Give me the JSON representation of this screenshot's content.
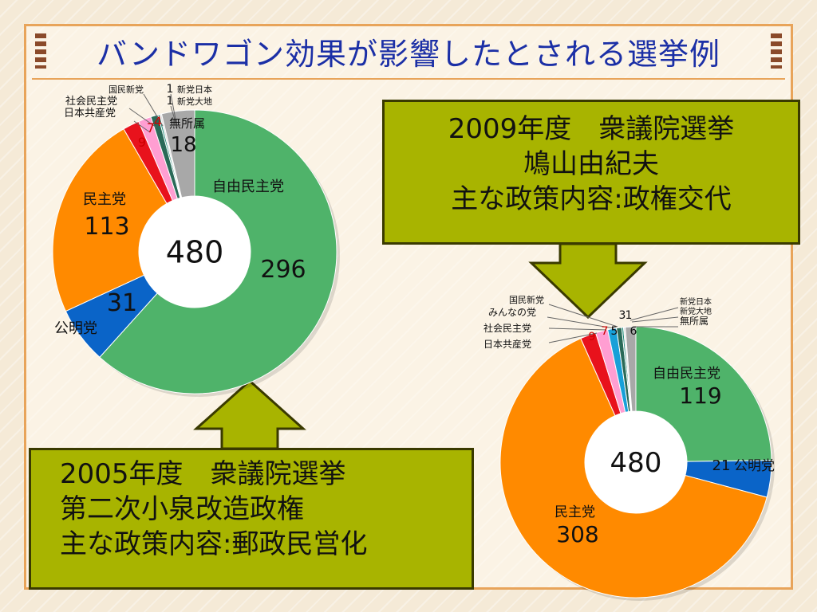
{
  "title": "バンドワゴン効果が影響したとされる選挙例",
  "colors": {
    "ldp": "#4fb36a",
    "komeito": "#0a64c8",
    "dpj": "#ff8a00",
    "jcp": "#e8121c",
    "sdp": "#ff9ed2",
    "your_party": "#18a0d8",
    "pnp": "#2a6a58",
    "nph": "#1f8a78",
    "daichi": "#e0e0e0",
    "indep": "#a8a8a8",
    "callout_bg": "#a8b400",
    "title": "#1b2fa6"
  },
  "callout_2009": {
    "line1": "2009年度　衆議院選挙",
    "line2": "鳩山由紀夫",
    "line3": "主な政策内容:政権交代"
  },
  "callout_2005": {
    "line1": "2005年度　衆議院選挙",
    "line2": "第二次小泉改造政権",
    "line3": "主な政策内容:郵政民営化"
  },
  "chart_data": [
    {
      "type": "pie",
      "name": "2005",
      "total_label": "480",
      "slices": [
        {
          "label": "自由民主党",
          "value": 296,
          "color_key": "ldp"
        },
        {
          "label": "公明党",
          "value": 31,
          "color_key": "komeito"
        },
        {
          "label": "民主党",
          "value": 113,
          "color_key": "dpj"
        },
        {
          "label": "日本共産党",
          "value": 9,
          "color_key": "jcp"
        },
        {
          "label": "社会民主党",
          "value": 7,
          "color_key": "sdp"
        },
        {
          "label": "国民新党",
          "value": 4,
          "color_key": "pnp"
        },
        {
          "label": "新党日本",
          "value": 1,
          "color_key": "nph"
        },
        {
          "label": "新党大地",
          "value": 1,
          "color_key": "daichi"
        },
        {
          "label": "無所属",
          "value": 18,
          "color_key": "indep"
        }
      ]
    },
    {
      "type": "pie",
      "name": "2009",
      "total_label": "480",
      "slices": [
        {
          "label": "自由民主党",
          "value": 119,
          "color_key": "ldp"
        },
        {
          "label": "公明党",
          "value": 21,
          "color_key": "komeito"
        },
        {
          "label": "民主党",
          "value": 308,
          "color_key": "dpj"
        },
        {
          "label": "日本共産党",
          "value": 9,
          "color_key": "jcp"
        },
        {
          "label": "社会民主党",
          "value": 7,
          "color_key": "sdp"
        },
        {
          "label": "みんなの党",
          "value": 5,
          "color_key": "your_party"
        },
        {
          "label": "国民新党",
          "value": 3,
          "color_key": "pnp"
        },
        {
          "label": "新党日本",
          "value": 1,
          "color_key": "nph"
        },
        {
          "label": "新党大地",
          "value": 1,
          "color_key": "daichi"
        },
        {
          "label": "無所属",
          "value": 6,
          "color_key": "indep"
        }
      ]
    }
  ]
}
